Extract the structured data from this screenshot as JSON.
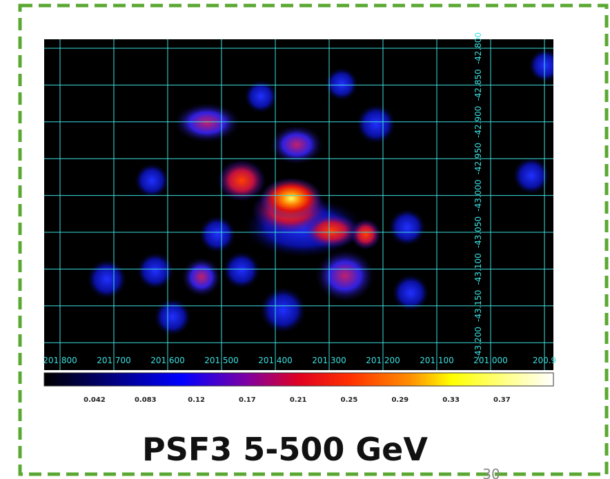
{
  "image": {
    "x_labels": [
      "201.800",
      "201.700",
      "201.600",
      "201.500",
      "201.400",
      "201.300",
      "201.200",
      "201.100",
      "201.000",
      "200.9"
    ],
    "y_labels": [
      "-42.800",
      "-42.850",
      "-42.900",
      "-42.950",
      "-43.000",
      "-43.050",
      "-43.100",
      "-43.150",
      "-43.200"
    ]
  },
  "colorbar": {
    "labels": [
      "0.042",
      "0.083",
      "0.12",
      "0.17",
      "0.21",
      "0.25",
      "0.29",
      "0.33",
      "0.37"
    ]
  },
  "caption": "PSF3 5-500 GeV",
  "page_number": "30"
}
